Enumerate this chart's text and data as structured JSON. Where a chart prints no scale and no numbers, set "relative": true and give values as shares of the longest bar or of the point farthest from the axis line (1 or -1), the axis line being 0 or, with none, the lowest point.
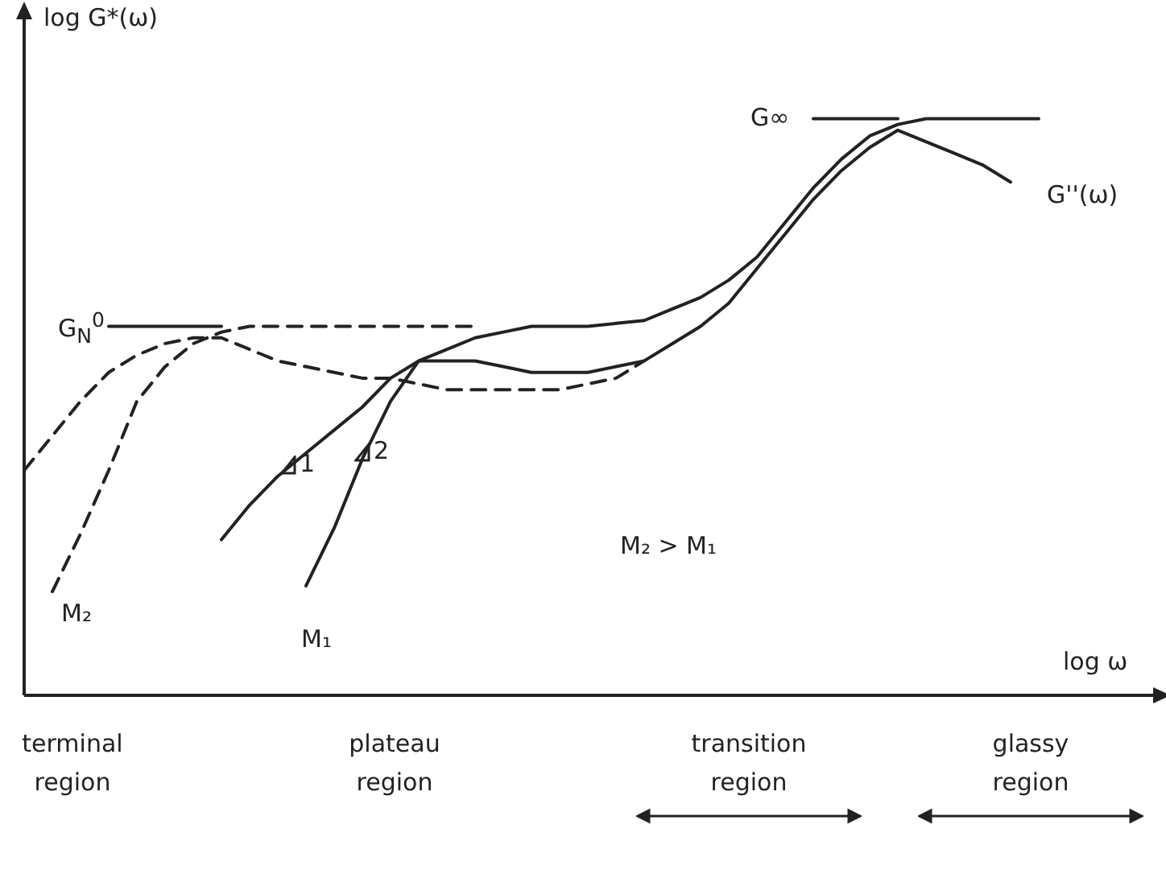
{
  "chart_data": {
    "type": "line",
    "relative": true,
    "xlabel": "log ω",
    "ylabel": "log G*(ω)",
    "categories": [
      null,
      null,
      null,
      null,
      null,
      null,
      null,
      null,
      null,
      null,
      null,
      null,
      null,
      null,
      null,
      null,
      null,
      null,
      null,
      null,
      null,
      null,
      null,
      null,
      null,
      null,
      null,
      null,
      null,
      null,
      null,
      null,
      null,
      null,
      null,
      null,
      null
    ],
    "series": [
      {
        "color": "#222222",
        "line_style": "solid",
        "values": [
          null,
          null,
          null,
          null,
          null,
          null,
          null,
          null,
          null,
          null,
          0.19,
          0.29,
          0.41,
          0.51,
          0.58,
          0.6,
          0.62,
          0.63,
          0.64,
          0.64,
          0.64,
          0.645,
          0.65,
          0.67,
          0.69,
          0.72,
          0.76,
          0.82,
          0.88,
          0.93,
          0.97,
          0.99,
          1.0,
          1.0,
          1.0,
          1.0,
          1.0
        ]
      },
      {
        "color": "#222222",
        "line_style": "solid",
        "values": [
          null,
          null,
          null,
          null,
          null,
          null,
          null,
          0.27,
          0.33,
          0.38,
          0.42,
          0.46,
          0.5,
          0.55,
          0.58,
          0.58,
          0.58,
          0.57,
          0.56,
          0.56,
          0.56,
          0.57,
          0.58,
          0.61,
          0.64,
          0.68,
          0.74,
          0.8,
          0.86,
          0.91,
          0.95,
          0.98,
          0.96,
          0.94,
          0.92,
          0.89,
          null
        ]
      },
      {
        "color": "#222222",
        "line_style": "dashed",
        "values": [
          null,
          0.18,
          0.28,
          0.39,
          0.51,
          0.57,
          0.61,
          0.63,
          0.64,
          0.64,
          0.64,
          0.64,
          0.64,
          0.64,
          0.64,
          0.64,
          0.64,
          null,
          null,
          null,
          null,
          null,
          null,
          null,
          null,
          null,
          null,
          null,
          null,
          null,
          null,
          null,
          null,
          null,
          null,
          null,
          null
        ]
      },
      {
        "color": "#222222",
        "line_style": "dashed",
        "values": [
          0.39,
          0.45,
          0.51,
          0.56,
          0.59,
          0.61,
          0.62,
          0.62,
          0.6,
          0.58,
          0.57,
          0.56,
          0.55,
          0.55,
          0.54,
          0.53,
          0.53,
          0.53,
          0.53,
          0.53,
          0.54,
          0.55,
          0.58,
          null,
          null,
          null,
          null,
          null,
          null,
          null,
          null,
          null,
          null,
          null,
          null,
          null,
          null
        ]
      },
      {
        "color": "#222222",
        "line_style": "solid",
        "values": [
          null,
          null,
          null,
          0.64,
          0.64,
          0.64,
          0.64,
          0.64,
          null,
          null,
          null,
          null,
          null,
          null,
          null,
          null,
          null,
          null,
          null,
          null,
          null,
          null,
          null,
          null,
          null,
          null,
          null,
          null,
          null,
          null,
          null,
          null,
          null,
          null,
          null,
          null,
          null
        ]
      },
      {
        "color": "#222222",
        "line_style": "solid",
        "values": [
          null,
          null,
          null,
          null,
          null,
          null,
          null,
          null,
          null,
          null,
          null,
          null,
          null,
          null,
          null,
          null,
          null,
          null,
          null,
          null,
          null,
          null,
          null,
          null,
          null,
          null,
          null,
          null,
          1.0,
          1.0,
          1.0,
          1.0,
          null,
          null,
          null,
          null,
          null
        ]
      }
    ],
    "annotations": [
      "G$_{N}$$^{0}$",
      "G∞",
      "G''(ω)",
      "M₂",
      "M₁",
      "1",
      "2",
      "M₂ > M₁",
      "terminal region",
      "plateau region",
      "transition region",
      "glassy region"
    ]
  }
}
